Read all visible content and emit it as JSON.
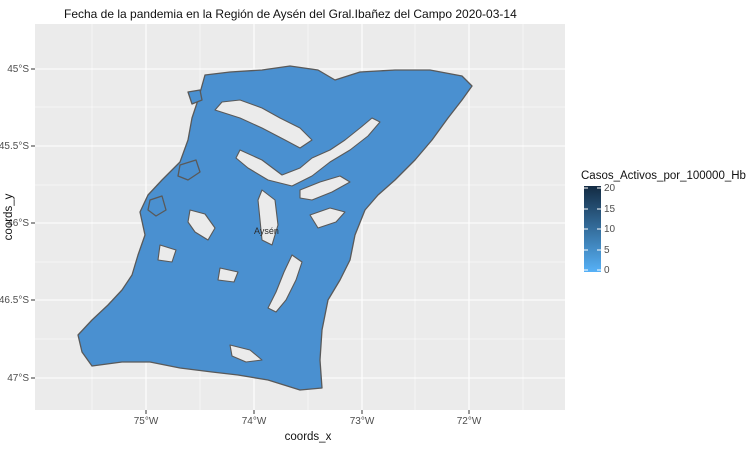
{
  "title": "Fecha de la pandemia en la Región de Aysén del Gral.Ibañez del Campo 2020-03-14",
  "x_axis": {
    "label": "coords_x",
    "ticks": [
      "75°W",
      "74°W",
      "73°W",
      "72°W"
    ]
  },
  "y_axis": {
    "label": "coords_y",
    "ticks": [
      "45°S",
      "45.5°S",
      "46°S",
      "46.5°S",
      "47°S"
    ]
  },
  "legend": {
    "title": "Casos_Activos_por_100000_Hb",
    "ticks": [
      "20",
      "15",
      "10",
      "5",
      "0"
    ],
    "gradient": [
      "#132B43",
      "#56B1F7"
    ]
  },
  "map_labels": [
    {
      "text": "Aysén"
    }
  ],
  "colors": {
    "panel_background": "#EBEBEB",
    "gridline": "#ffffff",
    "region_fill": "#4A90D0",
    "region_border": "#595959"
  }
}
